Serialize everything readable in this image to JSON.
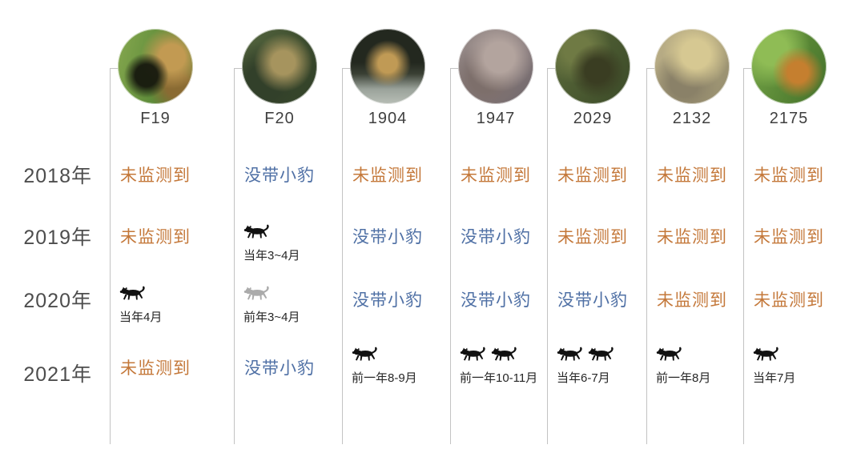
{
  "page": {
    "background": "#ffffff"
  },
  "colors": {
    "not_detected": "#C4783A",
    "no_cubs": "#4F70A5",
    "year_label": "#4D4D4D",
    "id_label": "#3F3F3F",
    "caption": "#262626",
    "line": "#C3C3C3",
    "icon_black": "#111111",
    "icon_gray": "#ABABAB"
  },
  "icons": {
    "leopard_icon": "walking-leopard-silhouette"
  },
  "chart_data": {
    "type": "table",
    "title": "",
    "row_labels": [
      "2018年",
      "2019年",
      "2020年",
      "2021年"
    ],
    "legend_position": "none",
    "columns": [
      {
        "id": "F19",
        "photo": "leopard-with-cub-on-grass",
        "cells": [
          {
            "kind": "status",
            "text": "未监测到",
            "status": "not_detected"
          },
          {
            "kind": "status",
            "text": "未监测到",
            "status": "not_detected"
          },
          {
            "kind": "cubs",
            "count": 1,
            "variant": "black",
            "caption": "当年4月"
          },
          {
            "kind": "status",
            "text": "未监测到",
            "status": "not_detected"
          }
        ]
      },
      {
        "id": "F20",
        "photo": "leopard-head-in-dark-foliage",
        "cells": [
          {
            "kind": "status",
            "text": "没带小豹",
            "status": "no_cubs"
          },
          {
            "kind": "cubs",
            "count": 1,
            "variant": "black",
            "caption": "当年3~4月"
          },
          {
            "kind": "cubs",
            "count": 1,
            "variant": "gray",
            "caption": "前年3~4月"
          },
          {
            "kind": "status",
            "text": "没带小豹",
            "status": "no_cubs"
          }
        ]
      },
      {
        "id": "1904",
        "photo": "leopard-lying-at-night",
        "cells": [
          {
            "kind": "status",
            "text": "未监测到",
            "status": "not_detected"
          },
          {
            "kind": "status",
            "text": "没带小豹",
            "status": "no_cubs"
          },
          {
            "kind": "status",
            "text": "没带小豹",
            "status": "no_cubs"
          },
          {
            "kind": "cubs",
            "count": 1,
            "variant": "black",
            "caption": "前一年8-9月"
          }
        ]
      },
      {
        "id": "1947",
        "photo": "leopard-on-gray-rocks",
        "cells": [
          {
            "kind": "status",
            "text": "未监测到",
            "status": "not_detected"
          },
          {
            "kind": "status",
            "text": "没带小豹",
            "status": "no_cubs"
          },
          {
            "kind": "status",
            "text": "没带小豹",
            "status": "no_cubs"
          },
          {
            "kind": "cubs",
            "count": 2,
            "variant": "black",
            "caption": "前一年10-11月"
          }
        ]
      },
      {
        "id": "2029",
        "photo": "leopard-in-dark-green-brush",
        "cells": [
          {
            "kind": "status",
            "text": "未监测到",
            "status": "not_detected"
          },
          {
            "kind": "status",
            "text": "未监测到",
            "status": "not_detected"
          },
          {
            "kind": "status",
            "text": "没带小豹",
            "status": "no_cubs"
          },
          {
            "kind": "cubs",
            "count": 2,
            "variant": "black",
            "caption": "当年6-7月"
          }
        ]
      },
      {
        "id": "2132",
        "photo": "pale-spotted-leopard-closeup",
        "cells": [
          {
            "kind": "status",
            "text": "未监测到",
            "status": "not_detected"
          },
          {
            "kind": "status",
            "text": "未监测到",
            "status": "not_detected"
          },
          {
            "kind": "status",
            "text": "未监测到",
            "status": "not_detected"
          },
          {
            "kind": "cubs",
            "count": 1,
            "variant": "black",
            "caption": "前一年8月"
          }
        ]
      },
      {
        "id": "2175",
        "photo": "leopard-sitting-in-green-grass",
        "cells": [
          {
            "kind": "status",
            "text": "未监测到",
            "status": "not_detected"
          },
          {
            "kind": "status",
            "text": "未监测到",
            "status": "not_detected"
          },
          {
            "kind": "status",
            "text": "未监测到",
            "status": "not_detected"
          },
          {
            "kind": "cubs",
            "count": 1,
            "variant": "black",
            "caption": "当年7月"
          }
        ]
      }
    ]
  }
}
